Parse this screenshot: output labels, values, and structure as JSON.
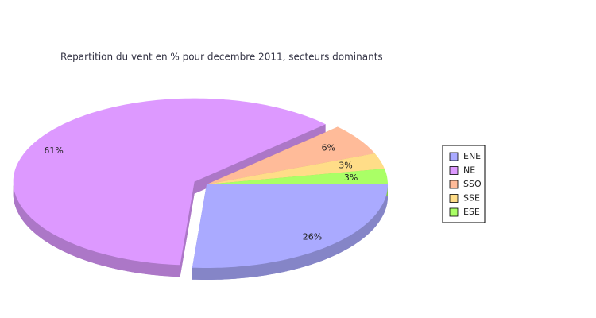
{
  "chart_data": {
    "type": "pie3d",
    "title": "Repartition du vent en % pour decembre 2011, secteurs dominants",
    "categories": [
      "ENE",
      "NE",
      "SSO",
      "SSE",
      "ESE"
    ],
    "values": [
      26,
      61,
      6,
      3,
      3
    ],
    "value_labels": [
      "26%",
      "61%",
      "6%",
      "3%",
      "3%"
    ],
    "colors": [
      "#aaaaff",
      "#dd99ff",
      "#ffbb99",
      "#ffdd88",
      "#aaff66"
    ],
    "explode": [
      false,
      true,
      false,
      false,
      false
    ],
    "legend": "right"
  }
}
